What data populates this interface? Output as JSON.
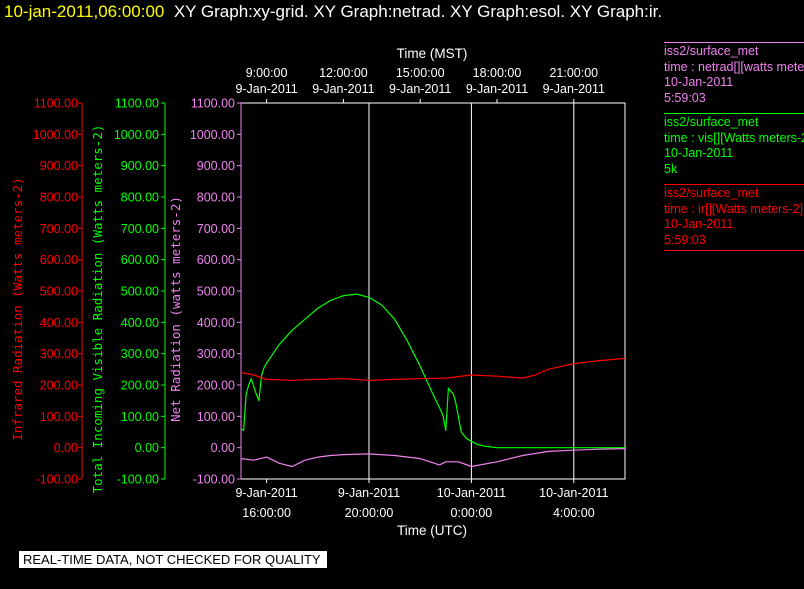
{
  "header": {
    "timestamp": "10-jan-2011,06:00:00",
    "graphs": "XY Graph:xy-grid.  XY Graph:netrad.  XY Graph:esol.  XY Graph:ir."
  },
  "footer_note": "REAL-TIME DATA, NOT CHECKED FOR QUALITY",
  "colors": {
    "background": "#000000",
    "ir": "#ff0000",
    "vis": "#00ff00",
    "netrad": "#ee82ee",
    "text": "#ffffff",
    "grid": "#ffffff"
  },
  "legend": [
    {
      "line1": "iss2/surface_met",
      "line2": "time : netrad[][watts meters-2]",
      "line3": "10-Jan-2011",
      "line4": "5:59:03",
      "color": "#ee82ee"
    },
    {
      "line1": "iss2/surface_met",
      "line2": "time : vis[][Watts meters-2]",
      "line3": "10-Jan-2011",
      "line4": "5k",
      "color": "#00ff00"
    },
    {
      "line1": "iss2/surface_met",
      "line2": "time : ir[][Watts meters-2]",
      "line3": "10-Jan-2011",
      "line4": "5:59:03",
      "color": "#ff0000"
    }
  ],
  "chart_data": {
    "type": "line",
    "top_axis_title": "Time (MST)",
    "bottom_axis_title": "Time (UTC)",
    "x_range_utc": [
      "2011-01-09 15:00",
      "2011-01-10 06:00"
    ],
    "top_ticks": [
      {
        "time": "9:00:00",
        "date": "9-Jan-2011",
        "utc": "2011-01-09 16:00"
      },
      {
        "time": "12:00:00",
        "date": "9-Jan-2011",
        "utc": "2011-01-09 19:00"
      },
      {
        "time": "15:00:00",
        "date": "9-Jan-2011",
        "utc": "2011-01-09 22:00"
      },
      {
        "time": "18:00:00",
        "date": "9-Jan-2011",
        "utc": "2011-01-10 01:00"
      },
      {
        "time": "21:00:00",
        "date": "9-Jan-2011",
        "utc": "2011-01-10 04:00"
      }
    ],
    "bottom_ticks": [
      {
        "date": "9-Jan-2011",
        "time": "16:00:00",
        "utc": "2011-01-09 16:00"
      },
      {
        "date": "9-Jan-2011",
        "time": "20:00:00",
        "utc": "2011-01-09 20:00"
      },
      {
        "date": "10-Jan-2011",
        "time": "0:00:00",
        "utc": "2011-01-10 00:00"
      },
      {
        "date": "10-Jan-2011",
        "time": "4:00:00",
        "utc": "2011-01-10 04:00"
      }
    ],
    "grid_utc": [
      "2011-01-09 20:00",
      "2011-01-10 00:00",
      "2011-01-10 04:00"
    ],
    "y_axes": [
      {
        "id": "ir",
        "label": "Infrared Radiation (Watts meters-2)",
        "color": "#ff0000",
        "ylim": [
          -100,
          1100
        ]
      },
      {
        "id": "vis",
        "label": "Total Incoming Visible Radiation (Watts meters-2)",
        "color": "#00ff00",
        "ylim": [
          -100,
          1100
        ]
      },
      {
        "id": "netrad",
        "label": "Net Radiation (watts meters-2)",
        "color": "#ee82ee",
        "ylim": [
          -100,
          1100
        ]
      }
    ],
    "y_ticks": [
      "1100.00",
      "1000.00",
      "900.00",
      "800.00",
      "700.00",
      "600.00",
      "500.00",
      "400.00",
      "300.00",
      "200.00",
      "100.00",
      "0.00",
      "-100.00"
    ],
    "series": [
      {
        "id": "vis",
        "color": "#00ff00",
        "x": [
          "2011-01-09 15:00",
          "2011-01-09 15:06",
          "2011-01-09 15:12",
          "2011-01-09 15:18",
          "2011-01-09 15:24",
          "2011-01-09 15:36",
          "2011-01-09 15:42",
          "2011-01-09 15:48",
          "2011-01-09 15:54",
          "2011-01-09 16:00",
          "2011-01-09 16:30",
          "2011-01-09 17:00",
          "2011-01-09 17:30",
          "2011-01-09 18:00",
          "2011-01-09 18:30",
          "2011-01-09 19:00",
          "2011-01-09 19:30",
          "2011-01-09 20:00",
          "2011-01-09 20:30",
          "2011-01-09 21:00",
          "2011-01-09 21:30",
          "2011-01-09 22:00",
          "2011-01-09 22:30",
          "2011-01-09 22:48",
          "2011-01-09 22:54",
          "2011-01-09 23:00",
          "2011-01-09 23:06",
          "2011-01-09 23:12",
          "2011-01-09 23:18",
          "2011-01-09 23:24",
          "2011-01-09 23:36",
          "2011-01-09 23:48",
          "2011-01-10 00:00",
          "2011-01-10 00:15",
          "2011-01-10 00:30",
          "2011-01-10 01:00",
          "2011-01-10 02:00",
          "2011-01-10 03:00",
          "2011-01-10 04:00",
          "2011-01-10 05:00",
          "2011-01-10 06:00"
        ],
        "values": [
          60,
          55,
          170,
          200,
          220,
          170,
          150,
          230,
          255,
          270,
          330,
          375,
          410,
          445,
          470,
          485,
          490,
          480,
          455,
          410,
          340,
          260,
          170,
          120,
          100,
          55,
          190,
          180,
          170,
          140,
          50,
          30,
          20,
          10,
          5,
          0,
          0,
          0,
          0,
          0,
          0
        ]
      },
      {
        "id": "ir",
        "color": "#ff0000",
        "x": [
          "2011-01-09 15:00",
          "2011-01-09 15:30",
          "2011-01-09 16:00",
          "2011-01-09 17:00",
          "2011-01-09 18:00",
          "2011-01-09 19:00",
          "2011-01-09 20:00",
          "2011-01-09 21:00",
          "2011-01-09 22:00",
          "2011-01-09 23:00",
          "2011-01-10 00:00",
          "2011-01-10 01:00",
          "2011-01-10 02:00",
          "2011-01-10 02:30",
          "2011-01-10 03:00",
          "2011-01-10 04:00",
          "2011-01-10 05:00",
          "2011-01-10 06:00"
        ],
        "values": [
          240,
          232,
          218,
          215,
          218,
          220,
          215,
          218,
          220,
          222,
          232,
          228,
          222,
          232,
          250,
          268,
          278,
          285
        ]
      },
      {
        "id": "netrad",
        "color": "#ee82ee",
        "x": [
          "2011-01-09 15:00",
          "2011-01-09 15:30",
          "2011-01-09 16:00",
          "2011-01-09 16:30",
          "2011-01-09 17:00",
          "2011-01-09 17:30",
          "2011-01-09 18:00",
          "2011-01-09 18:30",
          "2011-01-09 19:00",
          "2011-01-09 20:00",
          "2011-01-09 21:00",
          "2011-01-09 22:00",
          "2011-01-09 22:45",
          "2011-01-09 23:00",
          "2011-01-09 23:30",
          "2011-01-10 00:00",
          "2011-01-10 01:00",
          "2011-01-10 02:00",
          "2011-01-10 03:00",
          "2011-01-10 04:00",
          "2011-01-10 05:00",
          "2011-01-10 06:00"
        ],
        "values": [
          -35,
          -40,
          -30,
          -50,
          -60,
          -40,
          -30,
          -25,
          -22,
          -20,
          -25,
          -35,
          -55,
          -45,
          -45,
          -60,
          -45,
          -25,
          -12,
          -8,
          -5,
          -3
        ]
      }
    ]
  }
}
